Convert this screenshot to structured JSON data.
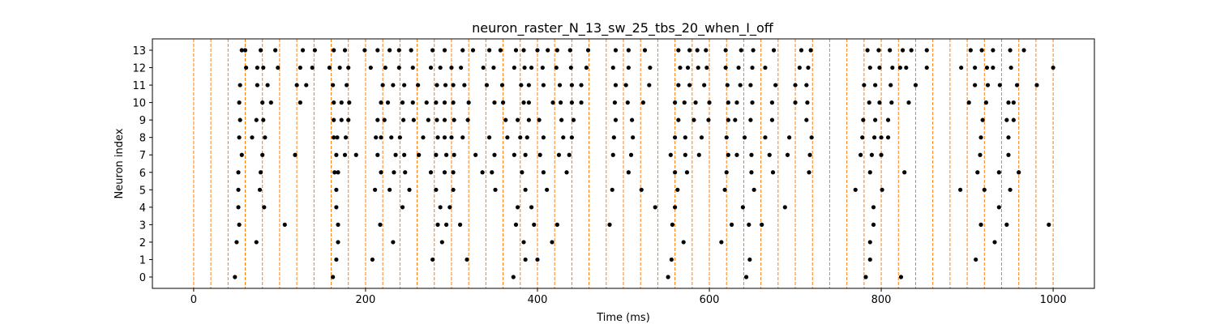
{
  "chart_data": {
    "type": "scatter",
    "title": "neuron_raster_N_13_sw_25_tbs_20_when_I_off",
    "xlabel": "Time (ms)",
    "ylabel": "Neuron index",
    "xlim": [
      -48,
      1048
    ],
    "ylim": [
      -0.65,
      13.65
    ],
    "xticks": [
      0,
      200,
      400,
      600,
      800,
      1000
    ],
    "yticks": [
      0,
      1,
      2,
      3,
      4,
      5,
      6,
      7,
      8,
      9,
      10,
      11,
      12,
      13
    ],
    "grid": false,
    "marker_color": "#000000",
    "vline_color": "#ff7f0e",
    "vlines": [
      0,
      20,
      40,
      60,
      80,
      100,
      120,
      140,
      160,
      180,
      200,
      220,
      240,
      260,
      280,
      300,
      320,
      340,
      360,
      380,
      400,
      420,
      440,
      460,
      480,
      500,
      520,
      540,
      560,
      580,
      600,
      620,
      640,
      660,
      680,
      700,
      720,
      740,
      760,
      780,
      800,
      820,
      840,
      860,
      880,
      900,
      920,
      940,
      960,
      980,
      1000
    ],
    "series": [
      {
        "neuron": 0,
        "times": [
          48,
          162,
          372,
          552,
          643,
          782,
          823
        ]
      },
      {
        "neuron": 1,
        "times": [
          166,
          208,
          278,
          318,
          386,
          400,
          556,
          647,
          787,
          910
        ]
      },
      {
        "neuron": 2,
        "times": [
          50,
          73,
          168,
          232,
          289,
          384,
          417,
          570,
          614,
          787,
          932
        ]
      },
      {
        "neuron": 3,
        "times": [
          53,
          106,
          168,
          217,
          284,
          294,
          310,
          375,
          396,
          423,
          484,
          557,
          626,
          646,
          661,
          791,
          916,
          946,
          995
        ]
      },
      {
        "neuron": 4,
        "times": [
          52,
          82,
          166,
          243,
          287,
          298,
          377,
          393,
          537,
          560,
          639,
          688,
          791,
          937
        ]
      },
      {
        "neuron": 5,
        "times": [
          52,
          77,
          166,
          211,
          228,
          251,
          282,
          302,
          351,
          386,
          411,
          487,
          521,
          563,
          618,
          652,
          770,
          801,
          892,
          920,
          950
        ]
      },
      {
        "neuron": 6,
        "times": [
          52,
          78,
          164,
          168,
          218,
          233,
          246,
          276,
          292,
          302,
          336,
          347,
          382,
          407,
          434,
          506,
          560,
          574,
          620,
          649,
          674,
          716,
          787,
          827,
          912,
          937,
          960
        ]
      },
      {
        "neuron": 7,
        "times": [
          56,
          80,
          118,
          166,
          176,
          189,
          214,
          235,
          245,
          262,
          282,
          294,
          303,
          328,
          350,
          373,
          386,
          403,
          425,
          437,
          488,
          509,
          555,
          572,
          588,
          622,
          632,
          649,
          670,
          691,
          717,
          776,
          789,
          800,
          915,
          948
        ]
      },
      {
        "neuron": 8,
        "times": [
          53,
          68,
          83,
          163,
          167,
          177,
          212,
          218,
          230,
          240,
          267,
          284,
          292,
          300,
          313,
          344,
          365,
          380,
          388,
          407,
          430,
          440,
          489,
          511,
          560,
          572,
          591,
          620,
          641,
          665,
          693,
          719,
          778,
          792,
          800,
          808,
          916,
          948
        ]
      },
      {
        "neuron": 9,
        "times": [
          54,
          73,
          81,
          163,
          172,
          180,
          214,
          222,
          244,
          256,
          273,
          283,
          292,
          303,
          319,
          363,
          377,
          390,
          402,
          428,
          442,
          491,
          510,
          564,
          582,
          599,
          622,
          630,
          648,
          673,
          713,
          779,
          793,
          808,
          918,
          946,
          954
        ]
      },
      {
        "neuron": 10,
        "times": [
          53,
          80,
          90,
          124,
          163,
          172,
          181,
          218,
          226,
          243,
          255,
          271,
          282,
          292,
          302,
          320,
          350,
          360,
          384,
          390,
          418,
          427,
          440,
          451,
          490,
          505,
          523,
          560,
          571,
          584,
          600,
          622,
          632,
          650,
          673,
          700,
          714,
          786,
          798,
          812,
          832,
          902,
          922,
          948,
          954
        ]
      },
      {
        "neuron": 11,
        "times": [
          54,
          74,
          86,
          120,
          131,
          162,
          178,
          220,
          232,
          245,
          261,
          283,
          293,
          302,
          315,
          341,
          359,
          381,
          390,
          407,
          426,
          440,
          451,
          491,
          503,
          530,
          564,
          577,
          594,
          621,
          636,
          648,
          677,
          700,
          713,
          780,
          793,
          811,
          840,
          909,
          924,
          938,
          958,
          981
        ]
      },
      {
        "neuron": 12,
        "times": [
          61,
          74,
          81,
          98,
          124,
          138,
          158,
          170,
          180,
          206,
          223,
          239,
          255,
          276,
          287,
          300,
          311,
          337,
          349,
          373,
          385,
          393,
          406,
          422,
          439,
          457,
          488,
          506,
          531,
          566,
          575,
          587,
          597,
          619,
          634,
          650,
          665,
          705,
          715,
          787,
          798,
          813,
          822,
          829,
          853,
          893,
          909,
          923,
          930,
          951,
          1000
        ]
      },
      {
        "neuron": 13,
        "times": [
          56,
          60,
          78,
          95,
          127,
          141,
          163,
          176,
          199,
          214,
          228,
          239,
          253,
          278,
          292,
          313,
          325,
          344,
          357,
          375,
          384,
          400,
          412,
          423,
          438,
          459,
          491,
          506,
          525,
          564,
          577,
          586,
          596,
          619,
          637,
          651,
          675,
          707,
          718,
          784,
          797,
          810,
          825,
          835,
          853,
          904,
          917,
          930,
          950,
          966
        ]
      }
    ]
  }
}
